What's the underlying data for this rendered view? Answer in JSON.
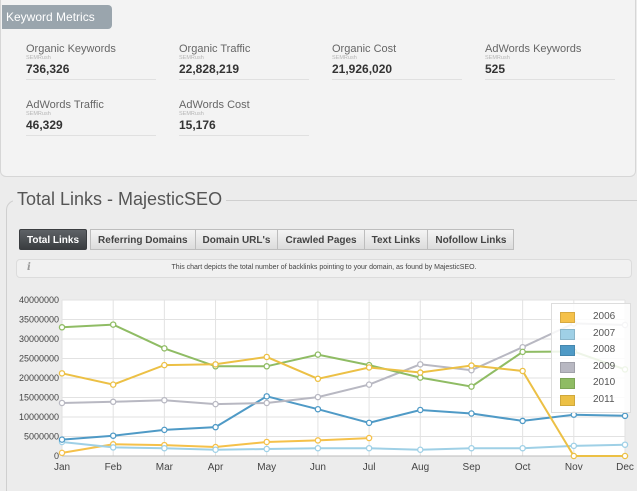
{
  "metrics": {
    "tab_label": "Keyword Metrics",
    "items": [
      {
        "label": "Organic Keywords",
        "source": "SEMRush",
        "value": "736,326"
      },
      {
        "label": "Organic Traffic",
        "source": "SEMRush",
        "value": "22,828,219"
      },
      {
        "label": "Organic Cost",
        "source": "SEMRush",
        "value": "21,926,020"
      },
      {
        "label": "AdWords Keywords",
        "source": "SEMRush",
        "value": "525"
      },
      {
        "label": "AdWords Traffic",
        "source": "SEMRush",
        "value": "46,329"
      },
      {
        "label": "AdWords Cost",
        "source": "SEMRush",
        "value": "15,176"
      }
    ]
  },
  "links": {
    "title": "Total Links - MajesticSEO",
    "tabs": [
      {
        "label": "Total Links",
        "active": true
      },
      {
        "label": "Referring Domains",
        "active": false
      },
      {
        "label": "Domain URL's",
        "active": false
      },
      {
        "label": "Crawled Pages",
        "active": false
      },
      {
        "label": "Text Links",
        "active": false
      },
      {
        "label": "Nofollow Links",
        "active": false
      }
    ],
    "info_text": "This chart depicts the total number of backlinks pointing to your domain, as found by MajesticSEO.",
    "info_icon": "info-icon"
  },
  "chart_data": {
    "type": "line",
    "categories": [
      "Jan",
      "Feb",
      "Mar",
      "Apr",
      "May",
      "Jun",
      "Jul",
      "Aug",
      "Sep",
      "Oct",
      "Nov",
      "Dec"
    ],
    "ylim": [
      0,
      40000000
    ],
    "yticks": [
      0,
      5000000,
      10000000,
      15000000,
      20000000,
      25000000,
      30000000,
      35000000,
      40000000
    ],
    "grid": true,
    "legend": "top-right",
    "series": [
      {
        "name": "2006",
        "color": "#f5c14a",
        "values": [
          800000,
          3000000,
          2800000,
          2300000,
          3600000,
          4000000,
          4600000,
          null,
          null,
          null,
          null,
          null
        ]
      },
      {
        "name": "2007",
        "color": "#9fd0e6",
        "values": [
          3600000,
          2200000,
          2000000,
          1600000,
          1800000,
          2000000,
          2000000,
          1600000,
          2000000,
          2000000,
          2600000,
          2900000
        ]
      },
      {
        "name": "2008",
        "color": "#4f9ac6",
        "values": [
          4200000,
          5200000,
          6700000,
          7400000,
          15300000,
          12000000,
          8500000,
          11800000,
          10900000,
          9000000,
          10600000,
          10300000
        ]
      },
      {
        "name": "2009",
        "color": "#b8b8c2",
        "values": [
          13600000,
          13900000,
          14300000,
          13300000,
          13600000,
          15100000,
          18300000,
          23500000,
          22000000,
          27900000,
          34000000,
          33600000
        ]
      },
      {
        "name": "2010",
        "color": "#8fbc64",
        "values": [
          33000000,
          33700000,
          27600000,
          23000000,
          23000000,
          26000000,
          23300000,
          20100000,
          17800000,
          26700000,
          26800000,
          22200000
        ]
      },
      {
        "name": "2011",
        "color": "#ecc045",
        "values": [
          21200000,
          18300000,
          23300000,
          23500000,
          25400000,
          19800000,
          22700000,
          21400000,
          23200000,
          21800000,
          0,
          0
        ]
      }
    ]
  }
}
